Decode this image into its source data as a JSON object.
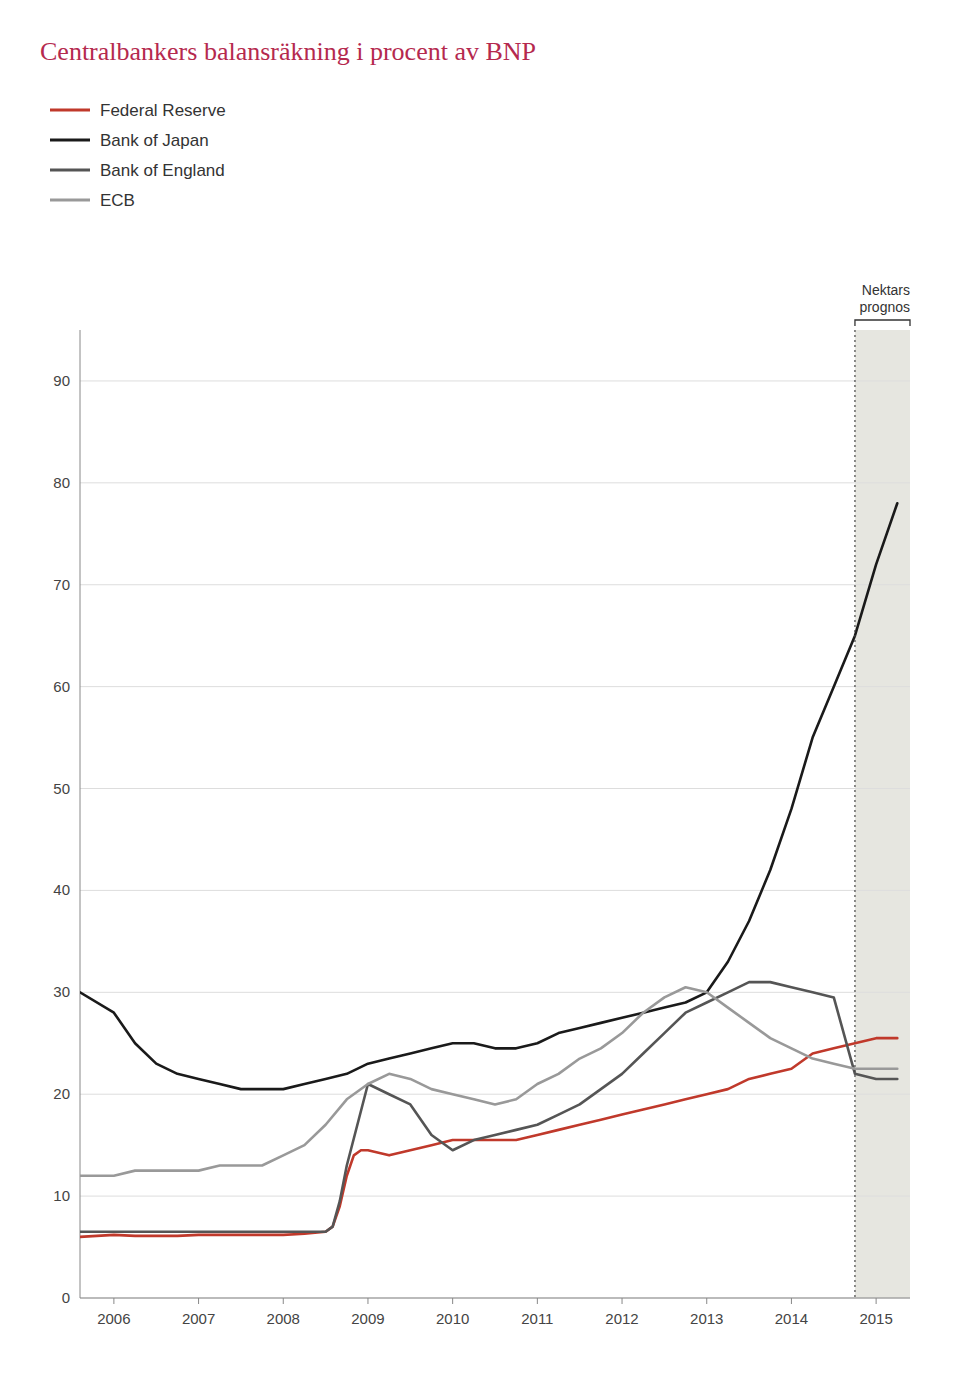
{
  "chart_data": {
    "type": "line",
    "title": "Centralbankers balansräkning i procent av BNP",
    "title_color": "#b5294e",
    "xlim": [
      2005.6,
      2015.4
    ],
    "xticks": [
      2006,
      2007,
      2008,
      2009,
      2010,
      2011,
      2012,
      2013,
      2014,
      2015
    ],
    "ylim": [
      0,
      95
    ],
    "yticks": [
      0,
      10,
      20,
      30,
      40,
      50,
      60,
      70,
      80,
      90
    ],
    "grid": true,
    "legend": "top",
    "forecast_start": 2014.75,
    "annotations": [
      "Nektars\nprognos"
    ],
    "series": [
      {
        "name": "Federal Reserve",
        "color": "#c0392b",
        "x": [
          2005.6,
          2006.0,
          2006.25,
          2006.5,
          2006.75,
          2007.0,
          2007.25,
          2007.5,
          2007.75,
          2008.0,
          2008.25,
          2008.5,
          2008.583,
          2008.667,
          2008.75,
          2008.833,
          2008.917,
          2009.0,
          2009.25,
          2009.5,
          2009.75,
          2010.0,
          2010.25,
          2010.5,
          2010.75,
          2011.0,
          2011.25,
          2011.5,
          2011.75,
          2012.0,
          2012.25,
          2012.5,
          2012.75,
          2013.0,
          2013.25,
          2013.5,
          2013.75,
          2014.0,
          2014.25,
          2014.5,
          2014.75,
          2015.0,
          2015.25
        ],
        "values": [
          6.0,
          6.2,
          6.1,
          6.1,
          6.1,
          6.2,
          6.2,
          6.2,
          6.2,
          6.2,
          6.3,
          6.5,
          7.0,
          9.0,
          12.0,
          14.0,
          14.5,
          14.5,
          14.0,
          14.5,
          15.0,
          15.5,
          15.5,
          15.5,
          15.5,
          16.0,
          16.5,
          17.0,
          17.5,
          18.0,
          18.5,
          19.0,
          19.5,
          20.0,
          20.5,
          21.5,
          22.0,
          22.5,
          24.0,
          24.5,
          25.0,
          25.5,
          25.5
        ]
      },
      {
        "name": "Bank of Japan",
        "color": "#1a1a1a",
        "x": [
          2005.6,
          2006.0,
          2006.25,
          2006.5,
          2006.75,
          2007.0,
          2007.25,
          2007.5,
          2007.75,
          2008.0,
          2008.25,
          2008.5,
          2008.75,
          2009.0,
          2009.25,
          2009.5,
          2009.75,
          2010.0,
          2010.25,
          2010.5,
          2010.75,
          2011.0,
          2011.25,
          2011.5,
          2011.75,
          2012.0,
          2012.25,
          2012.5,
          2012.75,
          2013.0,
          2013.25,
          2013.5,
          2013.75,
          2014.0,
          2014.25,
          2014.5,
          2014.75,
          2015.0,
          2015.25
        ],
        "values": [
          30.0,
          28.0,
          25.0,
          23.0,
          22.0,
          21.5,
          21.0,
          20.5,
          20.5,
          20.5,
          21.0,
          21.5,
          22.0,
          23.0,
          23.5,
          24.0,
          24.5,
          25.0,
          25.0,
          24.5,
          24.5,
          25.0,
          26.0,
          26.5,
          27.0,
          27.5,
          28.0,
          28.5,
          29.0,
          30.0,
          33.0,
          37.0,
          42.0,
          48.0,
          55.0,
          60.0,
          65.0,
          72.0,
          78.0
        ]
      },
      {
        "name": "Bank of England",
        "color": "#555555",
        "x": [
          2005.6,
          2006.0,
          2006.25,
          2006.5,
          2006.75,
          2007.0,
          2007.25,
          2007.5,
          2007.75,
          2008.0,
          2008.25,
          2008.5,
          2008.583,
          2008.667,
          2008.75,
          2009.0,
          2009.25,
          2009.5,
          2009.75,
          2010.0,
          2010.25,
          2010.5,
          2010.75,
          2011.0,
          2011.25,
          2011.5,
          2011.75,
          2012.0,
          2012.25,
          2012.5,
          2012.75,
          2013.0,
          2013.25,
          2013.5,
          2013.75,
          2014.0,
          2014.25,
          2014.5,
          2014.75,
          2015.0,
          2015.25
        ],
        "values": [
          6.5,
          6.5,
          6.5,
          6.5,
          6.5,
          6.5,
          6.5,
          6.5,
          6.5,
          6.5,
          6.5,
          6.5,
          7.0,
          9.5,
          13.0,
          21.0,
          20.0,
          19.0,
          16.0,
          14.5,
          15.5,
          16.0,
          16.5,
          17.0,
          18.0,
          19.0,
          20.5,
          22.0,
          24.0,
          26.0,
          28.0,
          29.0,
          30.0,
          31.0,
          31.0,
          30.5,
          30.0,
          29.5,
          22.0,
          21.5,
          21.5
        ]
      },
      {
        "name": "ECB",
        "color": "#999999",
        "x": [
          2005.6,
          2006.0,
          2006.25,
          2006.5,
          2006.75,
          2007.0,
          2007.25,
          2007.5,
          2007.75,
          2008.0,
          2008.25,
          2008.5,
          2008.75,
          2009.0,
          2009.25,
          2009.5,
          2009.75,
          2010.0,
          2010.25,
          2010.5,
          2010.75,
          2011.0,
          2011.25,
          2011.5,
          2011.75,
          2012.0,
          2012.25,
          2012.5,
          2012.75,
          2013.0,
          2013.25,
          2013.5,
          2013.75,
          2014.0,
          2014.25,
          2014.5,
          2014.75,
          2015.0,
          2015.25
        ],
        "values": [
          12.0,
          12.0,
          12.5,
          12.5,
          12.5,
          12.5,
          13.0,
          13.0,
          13.0,
          14.0,
          15.0,
          17.0,
          19.5,
          21.0,
          22.0,
          21.5,
          20.5,
          20.0,
          19.5,
          19.0,
          19.5,
          21.0,
          22.0,
          23.5,
          24.5,
          26.0,
          28.0,
          29.5,
          30.5,
          30.0,
          28.5,
          27.0,
          25.5,
          24.5,
          23.5,
          23.0,
          22.5,
          22.5,
          22.5
        ]
      }
    ]
  }
}
